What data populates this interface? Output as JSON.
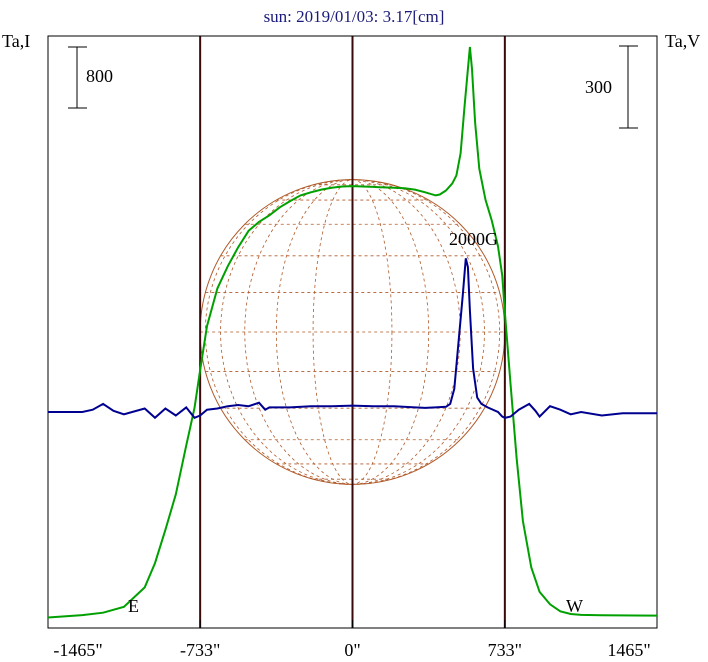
{
  "chart_data": {
    "type": "line",
    "title": "sun: 2019/01/03: 3.17[cm]",
    "left_axis_label": "Ta,I",
    "right_axis_label": "Ta,V",
    "left_scale_bar": "800",
    "right_scale_bar": "300",
    "annotation": "2000G",
    "limb_labels": {
      "east": "E",
      "west": "W"
    },
    "x_ticks": [
      {
        "value": -1465,
        "label": "-1465\""
      },
      {
        "value": -733,
        "label": "-733\""
      },
      {
        "value": 0,
        "label": "0\""
      },
      {
        "value": 733,
        "label": "733\""
      },
      {
        "value": 1465,
        "label": "1465\""
      }
    ],
    "xlim": [
      -1465,
      1465
    ],
    "vertical_lines": [
      -733,
      0,
      733
    ],
    "solar_radius": 733,
    "colors": {
      "intensity": "#00a000",
      "polarization": "#000090",
      "disk": "#b05a2a",
      "frame": "#000000",
      "guides": "#3a0a0a",
      "title": "#1a1a7a"
    },
    "series": [
      {
        "axis": "left",
        "points": [
          [
            -1465,
            -80
          ],
          [
            -1300,
            -25
          ],
          [
            -1200,
            30
          ],
          [
            -1100,
            160
          ],
          [
            -1000,
            600
          ],
          [
            -950,
            1150
          ],
          [
            -900,
            1900
          ],
          [
            -850,
            2700
          ],
          [
            -800,
            3800
          ],
          [
            -760,
            4650
          ],
          [
            -733,
            5500
          ],
          [
            -700,
            6500
          ],
          [
            -650,
            7350
          ],
          [
            -600,
            7850
          ],
          [
            -550,
            8280
          ],
          [
            -500,
            8650
          ],
          [
            -450,
            8850
          ],
          [
            -400,
            9000
          ],
          [
            -350,
            9180
          ],
          [
            -300,
            9320
          ],
          [
            -250,
            9450
          ],
          [
            -200,
            9520
          ],
          [
            -150,
            9580
          ],
          [
            -100,
            9620
          ],
          [
            -50,
            9650
          ],
          [
            0,
            9660
          ],
          [
            50,
            9650
          ],
          [
            100,
            9640
          ],
          [
            150,
            9630
          ],
          [
            200,
            9620
          ],
          [
            250,
            9610
          ],
          [
            300,
            9580
          ],
          [
            350,
            9520
          ],
          [
            400,
            9450
          ],
          [
            420,
            9470
          ],
          [
            450,
            9560
          ],
          [
            480,
            9720
          ],
          [
            500,
            9900
          ],
          [
            520,
            10400
          ],
          [
            540,
            11500
          ],
          [
            555,
            12300
          ],
          [
            565,
            12800
          ],
          [
            575,
            12300
          ],
          [
            590,
            11100
          ],
          [
            610,
            10050
          ],
          [
            640,
            9350
          ],
          [
            670,
            8880
          ],
          [
            700,
            8300
          ],
          [
            720,
            7650
          ],
          [
            733,
            6800
          ],
          [
            760,
            5200
          ],
          [
            790,
            3500
          ],
          [
            820,
            2100
          ],
          [
            860,
            1050
          ],
          [
            900,
            500
          ],
          [
            950,
            220
          ],
          [
            1000,
            60
          ],
          [
            1050,
            0
          ],
          [
            1100,
            -20
          ],
          [
            1200,
            -30
          ],
          [
            1465,
            -35
          ]
        ]
      },
      {
        "axis": "right",
        "points": [
          [
            -1465,
            0
          ],
          [
            -1300,
            0
          ],
          [
            -1250,
            4
          ],
          [
            -1200,
            14
          ],
          [
            -1150,
            2
          ],
          [
            -1100,
            -4
          ],
          [
            -1000,
            6
          ],
          [
            -950,
            -10
          ],
          [
            -900,
            6
          ],
          [
            -850,
            -6
          ],
          [
            -800,
            8
          ],
          [
            -760,
            -10
          ],
          [
            -733,
            -6
          ],
          [
            -700,
            4
          ],
          [
            -650,
            6
          ],
          [
            -600,
            10
          ],
          [
            -550,
            12
          ],
          [
            -500,
            10
          ],
          [
            -450,
            16
          ],
          [
            -420,
            4
          ],
          [
            -400,
            8
          ],
          [
            -300,
            8
          ],
          [
            -200,
            10
          ],
          [
            -100,
            10
          ],
          [
            0,
            11
          ],
          [
            100,
            10
          ],
          [
            200,
            10
          ],
          [
            300,
            8
          ],
          [
            350,
            7
          ],
          [
            400,
            8
          ],
          [
            450,
            9
          ],
          [
            470,
            14
          ],
          [
            490,
            40
          ],
          [
            510,
            120
          ],
          [
            530,
            200
          ],
          [
            545,
            265
          ],
          [
            555,
            250
          ],
          [
            565,
            175
          ],
          [
            580,
            75
          ],
          [
            600,
            25
          ],
          [
            620,
            14
          ],
          [
            650,
            8
          ],
          [
            700,
            0
          ],
          [
            720,
            -8
          ],
          [
            733,
            -10
          ],
          [
            760,
            -8
          ],
          [
            800,
            4
          ],
          [
            850,
            14
          ],
          [
            880,
            2
          ],
          [
            900,
            -8
          ],
          [
            950,
            10
          ],
          [
            1000,
            4
          ],
          [
            1050,
            -4
          ],
          [
            1100,
            0
          ],
          [
            1200,
            -6
          ],
          [
            1300,
            -2
          ],
          [
            1400,
            -2
          ],
          [
            1465,
            -2
          ]
        ]
      }
    ]
  }
}
